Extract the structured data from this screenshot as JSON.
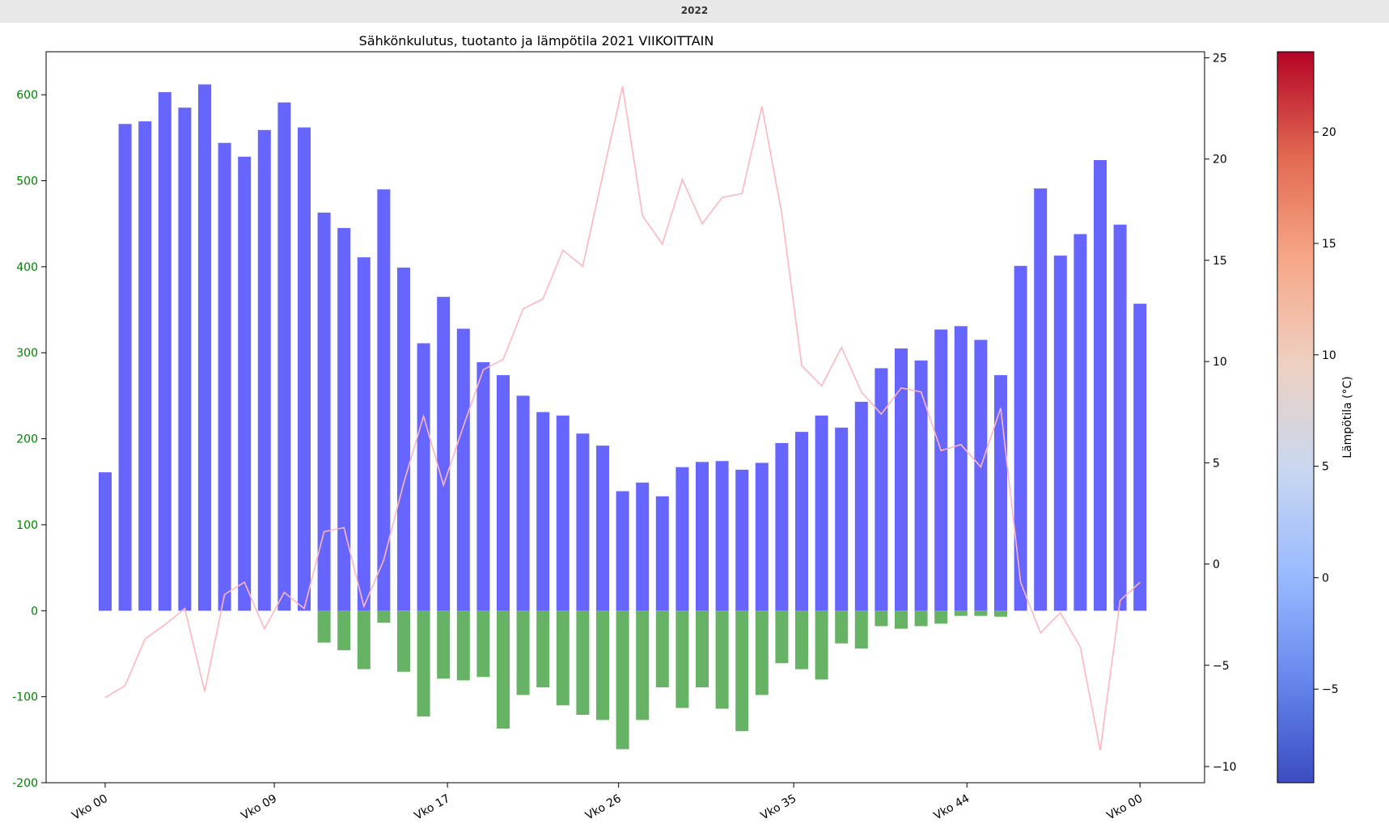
{
  "header": {
    "year_label": "2022"
  },
  "chart_data": {
    "type": "bar",
    "title": "Sähkönkulutus, tuotanto ja lämpötila 2021 VIIKOITTAIN",
    "xlabel": "",
    "ylabel": "",
    "ylim": [
      -200,
      650
    ],
    "y2lim": [
      -10.8,
      25.3
    ],
    "x_tick_labels": [
      "Vko 00",
      "Vko 09",
      "Vko 17",
      "Vko 26",
      "Vko 35",
      "Vko 44",
      "Vko 00"
    ],
    "x_tick_indices": [
      0,
      8.5,
      17.2,
      25.8,
      34.6,
      43.3,
      52
    ],
    "y_ticks_left": [
      -200,
      -100,
      0,
      100,
      200,
      300,
      400,
      500,
      600
    ],
    "y_ticks_right": [
      -10,
      -5,
      0,
      5,
      10,
      15,
      20,
      25
    ],
    "grid": false,
    "series": [
      {
        "kind": "bar",
        "color": "#6666ff",
        "values": [
          161,
          566,
          569,
          603,
          585,
          612,
          544,
          528,
          559,
          591,
          562,
          463,
          445,
          411,
          490,
          399,
          311,
          365,
          328,
          289,
          274,
          250,
          231,
          227,
          206,
          192,
          139,
          149,
          133,
          167,
          173,
          174,
          164,
          172,
          195,
          208,
          227,
          213,
          243,
          282,
          305,
          291,
          327,
          331,
          315,
          274,
          401,
          491,
          413,
          438,
          524,
          449,
          357
        ]
      },
      {
        "kind": "bar",
        "color": "#66b366",
        "values": [
          0,
          0,
          0,
          0,
          0,
          0,
          0,
          0,
          0,
          0,
          0,
          -37,
          -46,
          -68,
          -14,
          -71,
          -123,
          -79,
          -81,
          -77,
          -137,
          -98,
          -89,
          -110,
          -121,
          -127,
          -161,
          -127,
          -89,
          -113,
          -89,
          -114,
          -140,
          -98,
          -61,
          -68,
          -80,
          -38,
          -44,
          -18,
          -21,
          -18,
          -15,
          -6,
          -6,
          -7,
          0,
          0,
          0,
          0,
          0,
          0,
          0
        ]
      },
      {
        "kind": "line",
        "color": "#ffb6c1",
        "values": [
          -6.6,
          -6.0,
          -3.7,
          -3.0,
          -2.2,
          -6.3,
          -1.5,
          -0.9,
          -3.2,
          -1.4,
          -2.2,
          1.6,
          1.8,
          -2.1,
          0.2,
          4.0,
          7.3,
          3.9,
          6.8,
          9.6,
          10.1,
          12.6,
          13.1,
          15.5,
          14.7,
          19.2,
          23.6,
          17.2,
          15.8,
          19.0,
          16.8,
          18.1,
          18.3,
          22.6,
          17.3,
          9.8,
          8.8,
          10.7,
          8.5,
          7.4,
          8.7,
          8.5,
          5.6,
          5.9,
          4.8,
          7.7,
          -0.9,
          -3.4,
          -2.4,
          -4.1,
          -9.2,
          -1.8,
          -0.9
        ]
      }
    ],
    "colorbar": {
      "label": "Lämpötila (°C)",
      "ticks": [
        -5,
        0,
        5,
        10,
        15,
        20
      ],
      "range": [
        -9.2,
        23.6
      ],
      "colormap": "coolwarm",
      "stops": [
        "#3b4cc0",
        "#6788ee",
        "#9abbff",
        "#c9d7f0",
        "#edd1c2",
        "#f7a889",
        "#e26952",
        "#b40426"
      ]
    }
  }
}
